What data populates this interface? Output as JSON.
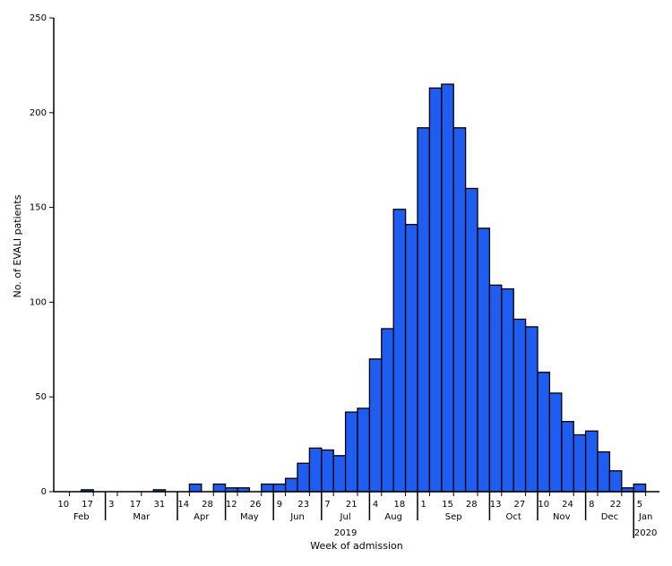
{
  "chart_data": {
    "type": "bar",
    "x_label": "Week of admission",
    "y_label": "No. of EVALI patients",
    "categories": [
      "10",
      null,
      "17",
      null,
      "3",
      null,
      "17",
      null,
      "31",
      null,
      "14",
      null,
      "28",
      null,
      "12",
      null,
      "26",
      null,
      "9",
      null,
      "23",
      null,
      "7",
      null,
      "21",
      null,
      "4",
      null,
      "18",
      null,
      "1",
      null,
      "15",
      null,
      "28",
      null,
      "13",
      null,
      "27",
      null,
      "10",
      null,
      "24",
      null,
      "8",
      null,
      "22",
      null,
      "5",
      null
    ],
    "values": [
      0,
      0,
      1,
      0,
      0,
      0,
      0,
      0,
      1,
      0,
      0,
      4,
      0,
      4,
      2,
      2,
      0,
      4,
      4,
      7,
      15,
      23,
      22,
      19,
      42,
      44,
      70,
      86,
      149,
      141,
      192,
      213,
      215,
      192,
      160,
      139,
      109,
      107,
      91,
      87,
      63,
      52,
      37,
      30,
      32,
      21,
      11,
      2,
      4,
      0
    ],
    "months": [
      "Feb",
      "Mar",
      "Apr",
      "May",
      "Jun",
      "Jul",
      "Aug",
      "Sep",
      "Oct",
      "Nov",
      "Dec",
      "Jan"
    ],
    "years": [
      "2019",
      "2020"
    ],
    "color": "#1f5cf0",
    "ylim": [
      0,
      250
    ],
    "yticks": [
      0,
      50,
      100,
      150,
      200,
      250
    ]
  }
}
